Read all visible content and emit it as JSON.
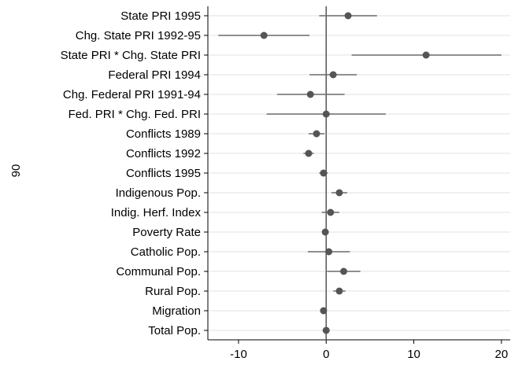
{
  "chart_data": {
    "type": "scatter",
    "subtype": "coefficient-plot",
    "ylabel": "90",
    "xlim": [
      -13.5,
      21
    ],
    "xticks": [
      -10,
      0,
      10,
      20
    ],
    "grid": true,
    "reference_line_x": 0,
    "colors": {
      "point": "#555555",
      "line": "#6a6a6a",
      "grid": "#e2e2e2",
      "refline": "#555555"
    },
    "variables": [
      {
        "label": "State PRI 1995",
        "estimate": 2.5,
        "ci": [
          -0.8,
          5.8
        ]
      },
      {
        "label": "Chg. State PRI 1992-95",
        "estimate": -7.1,
        "ci": [
          -12.3,
          -1.9
        ]
      },
      {
        "label": "State PRI * Chg. State PRI",
        "estimate": 11.4,
        "ci": [
          2.9,
          20.0
        ]
      },
      {
        "label": "Federal PRI 1994",
        "estimate": 0.8,
        "ci": [
          -1.9,
          3.5
        ]
      },
      {
        "label": "Chg. Federal PRI 1991-94",
        "estimate": -1.8,
        "ci": [
          -5.6,
          2.1
        ]
      },
      {
        "label": "Fed. PRI * Chg. Fed. PRI",
        "estimate": 0.0,
        "ci": [
          -6.8,
          6.8
        ]
      },
      {
        "label": "Conflicts 1989",
        "estimate": -1.1,
        "ci": [
          -2.0,
          -0.2
        ]
      },
      {
        "label": "Conflicts 1992",
        "estimate": -2.0,
        "ci": [
          -2.6,
          -1.4
        ]
      },
      {
        "label": "Conflicts 1995",
        "estimate": -0.3,
        "ci": [
          -0.8,
          0.2
        ]
      },
      {
        "label": "Indigenous Pop.",
        "estimate": 1.5,
        "ci": [
          0.6,
          2.4
        ]
      },
      {
        "label": "Indig. Herf. Index",
        "estimate": 0.5,
        "ci": [
          -0.5,
          1.5
        ]
      },
      {
        "label": "Poverty Rate",
        "estimate": -0.1,
        "ci": [
          -0.3,
          0.1
        ]
      },
      {
        "label": "Catholic Pop.",
        "estimate": 0.3,
        "ci": [
          -2.1,
          2.7
        ]
      },
      {
        "label": "Communal Pop.",
        "estimate": 2.0,
        "ci": [
          0.1,
          3.9
        ]
      },
      {
        "label": "Rural Pop.",
        "estimate": 1.5,
        "ci": [
          0.8,
          2.2
        ]
      },
      {
        "label": "Migration",
        "estimate": -0.3,
        "ci": [
          -0.6,
          0.0
        ]
      },
      {
        "label": "Total Pop.",
        "estimate": 0.0,
        "ci": [
          -0.2,
          0.2
        ]
      }
    ]
  }
}
